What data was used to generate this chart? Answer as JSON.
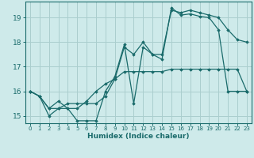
{
  "xlabel": "Humidex (Indice chaleur)",
  "background_color": "#ceeaea",
  "grid_color": "#aacece",
  "line_color": "#1a6b6b",
  "xlim": [
    -0.5,
    23.5
  ],
  "ylim": [
    14.7,
    19.65
  ],
  "yticks": [
    15,
    16,
    17,
    18,
    19
  ],
  "xtick_labels": [
    "0",
    "1",
    "2",
    "3",
    "4",
    "5",
    "6",
    "7",
    "8",
    "9",
    "10",
    "11",
    "12",
    "13",
    "14",
    "15",
    "16",
    "17",
    "18",
    "19",
    "20",
    "21",
    "22",
    "23"
  ],
  "series": [
    {
      "x": [
        0,
        1,
        2,
        3,
        4,
        5,
        6,
        7,
        8,
        9,
        10,
        11,
        12,
        13,
        14,
        15,
        16,
        17,
        18,
        19,
        20,
        21,
        22,
        23
      ],
      "y": [
        16.0,
        15.8,
        15.3,
        15.6,
        15.3,
        15.3,
        15.6,
        16.0,
        16.3,
        16.5,
        16.8,
        16.8,
        16.8,
        16.8,
        16.8,
        16.9,
        16.9,
        16.9,
        16.9,
        16.9,
        16.9,
        16.9,
        16.9,
        16.0
      ]
    },
    {
      "x": [
        0,
        1,
        2,
        3,
        4,
        5,
        6,
        7,
        8,
        9,
        10,
        11,
        12,
        13,
        14,
        15,
        16,
        17,
        18,
        19,
        20,
        21,
        22,
        23
      ],
      "y": [
        16.0,
        15.8,
        15.0,
        15.3,
        15.3,
        14.8,
        14.8,
        14.8,
        16.0,
        16.6,
        17.9,
        15.5,
        17.8,
        17.5,
        17.3,
        19.4,
        19.1,
        19.15,
        19.05,
        19.0,
        18.5,
        16.0,
        16.0,
        16.0
      ]
    },
    {
      "x": [
        0,
        1,
        2,
        3,
        4,
        5,
        6,
        7,
        8,
        9,
        10,
        11,
        12,
        13,
        14,
        15,
        16,
        17,
        18,
        19,
        20,
        21,
        22,
        23
      ],
      "y": [
        16.0,
        15.8,
        15.3,
        15.3,
        15.5,
        15.5,
        15.5,
        15.5,
        15.8,
        16.5,
        17.8,
        17.5,
        18.0,
        17.5,
        17.5,
        19.3,
        19.2,
        19.3,
        19.2,
        19.1,
        19.0,
        18.5,
        18.1,
        18.0
      ]
    }
  ]
}
